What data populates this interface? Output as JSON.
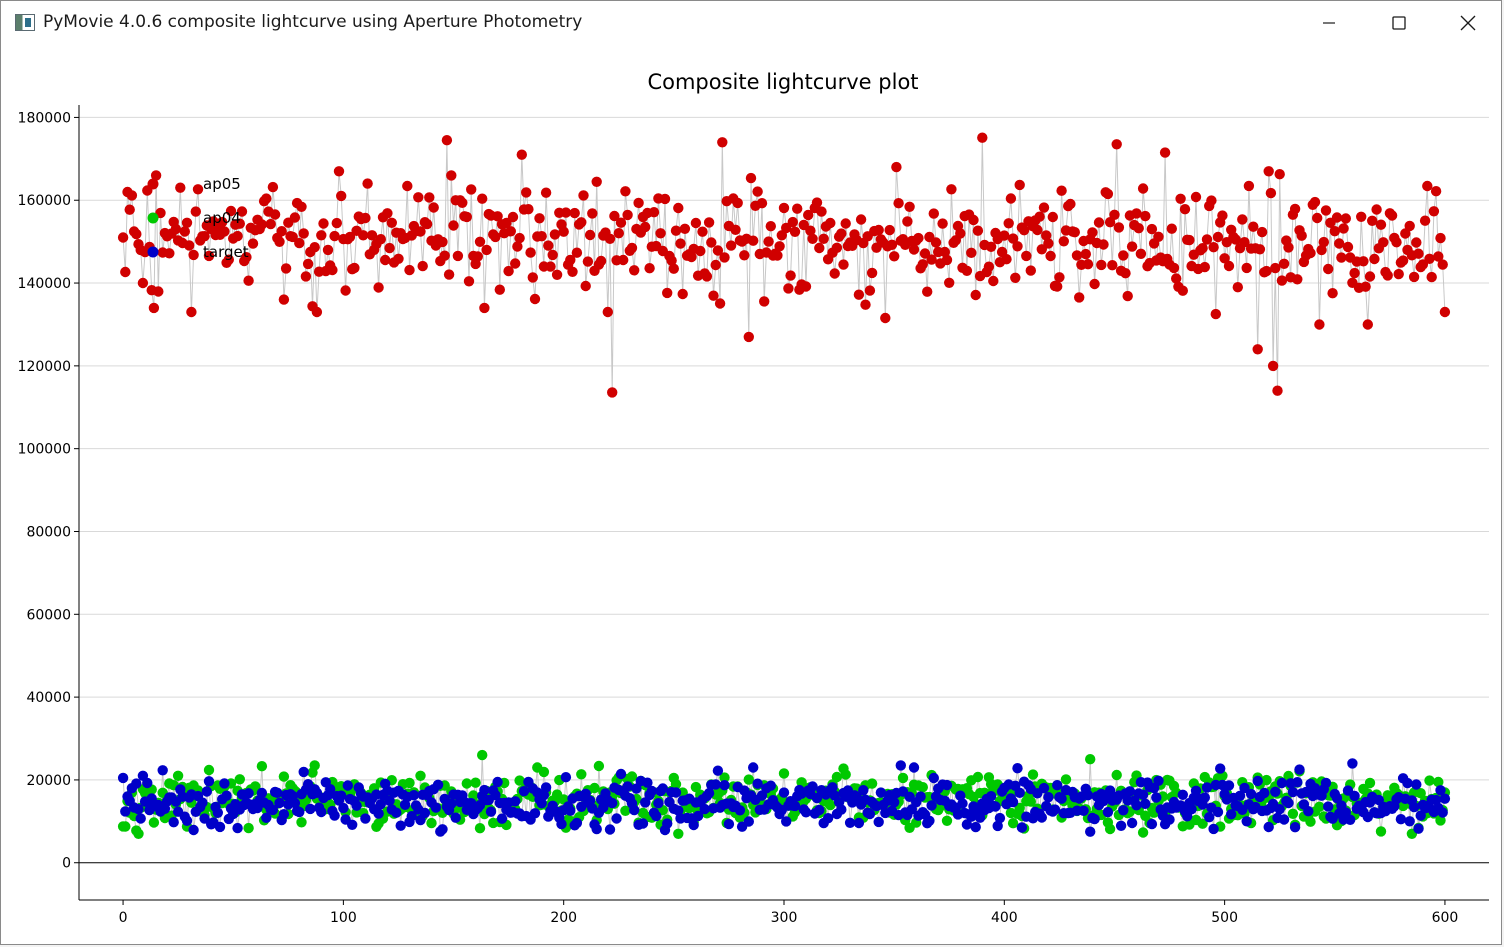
{
  "window": {
    "title": "PyMovie 4.0.6 composite lightcurve using Aperture Photometry",
    "icon": "pymovie-app-icon"
  },
  "controls": {
    "minimize": "minimize-icon",
    "maximize": "maximize-icon",
    "close": "close-icon"
  },
  "colors": {
    "ap05": "#d00000",
    "ap04": "#00c800",
    "target": "#0000c8",
    "connector": "#c8c8c8",
    "grid": "#d9d9d9",
    "axis": "#000000"
  },
  "chart_data": {
    "type": "scatter",
    "title": "Composite lightcurve plot",
    "xlabel": "",
    "ylabel": "",
    "xlim": [
      -20,
      620
    ],
    "ylim": [
      -9000,
      183000
    ],
    "xticks": [
      0,
      100,
      200,
      300,
      400,
      500,
      600
    ],
    "yticks": [
      0,
      20000,
      40000,
      60000,
      80000,
      100000,
      120000,
      140000,
      160000,
      180000
    ],
    "grid": "horizontal",
    "legend": "top-left",
    "num_points": 600,
    "series": [
      {
        "name": "ap05",
        "color": "#d00000",
        "mean": 150000,
        "spread": 9000,
        "range": [
          113600,
          175100
        ],
        "highlights": [
          [
            0,
            151000
          ],
          [
            2,
            162000
          ],
          [
            14,
            134000
          ],
          [
            15,
            166000
          ],
          [
            31,
            133000
          ],
          [
            73,
            136000
          ],
          [
            88,
            133000
          ],
          [
            98,
            167000
          ],
          [
            147,
            174500
          ],
          [
            149,
            166000
          ],
          [
            164,
            134000
          ],
          [
            181,
            171000
          ],
          [
            197,
            142000
          ],
          [
            220,
            133000
          ],
          [
            222,
            113600
          ],
          [
            272,
            174000
          ],
          [
            284,
            127000
          ],
          [
            351,
            168000
          ],
          [
            390,
            175100
          ],
          [
            451,
            173500
          ],
          [
            473,
            171500
          ],
          [
            496,
            132500
          ],
          [
            506,
            139000
          ],
          [
            515,
            124000
          ],
          [
            520,
            167000
          ],
          [
            522,
            120000
          ],
          [
            524,
            114000
          ],
          [
            543,
            130000
          ],
          [
            565,
            130000
          ],
          [
            600,
            133000
          ]
        ]
      },
      {
        "name": "ap04",
        "color": "#00c800",
        "mean": 15000,
        "spread": 4500,
        "range": [
          7000,
          26000
        ],
        "highlights": [
          [
            163,
            26000
          ],
          [
            188,
            23000
          ],
          [
            439,
            25000
          ],
          [
            87,
            23500
          ]
        ]
      },
      {
        "name": "target",
        "color": "#0000c8",
        "mean": 14500,
        "spread": 4200,
        "range": [
          7500,
          24000
        ],
        "highlights": [
          [
            0,
            20500
          ],
          [
            353,
            23500
          ],
          [
            359,
            23000
          ],
          [
            534,
            22500
          ],
          [
            558,
            24000
          ],
          [
            286,
            23000
          ]
        ]
      }
    ]
  }
}
